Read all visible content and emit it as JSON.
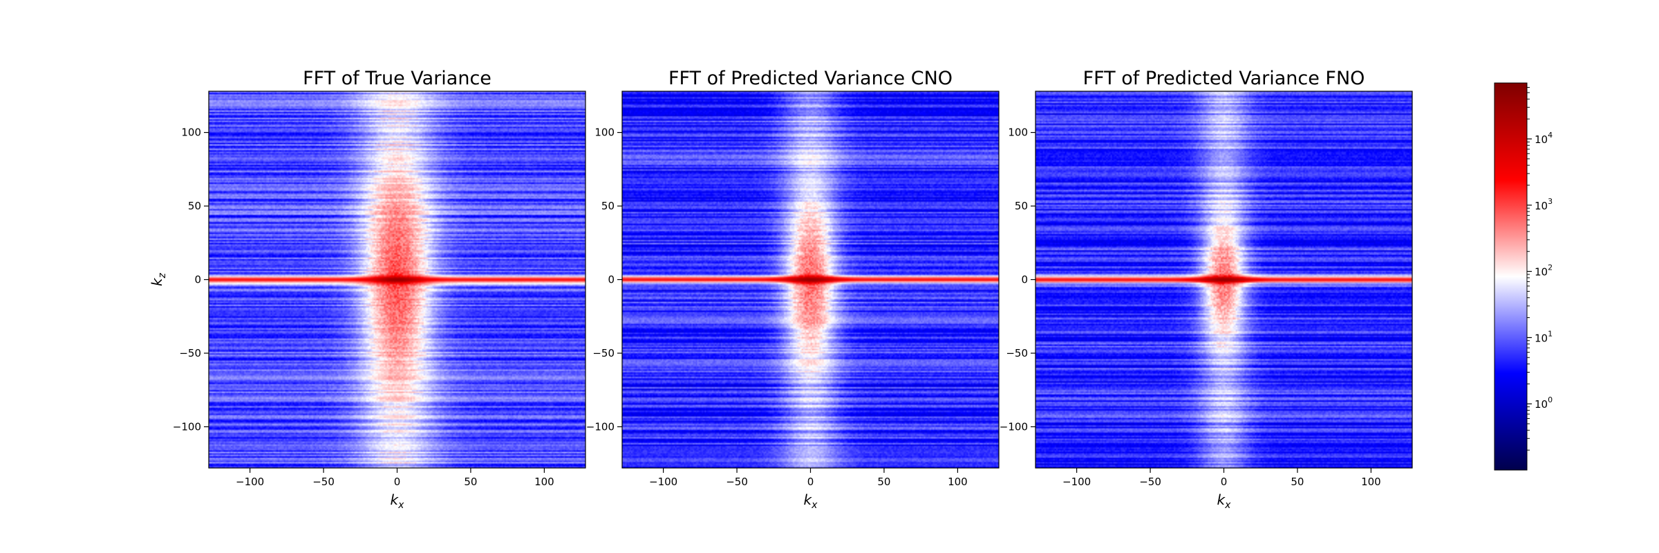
{
  "chart_data": [
    {
      "type": "heatmap",
      "title": "FFT of True Variance",
      "xlabel": "k_x",
      "ylabel": "k_z",
      "xlim": [
        -128,
        128
      ],
      "ylim": [
        -128,
        128
      ],
      "x_ticks": [
        -100,
        -50,
        0,
        50,
        100
      ],
      "y_ticks": [
        -100,
        -50,
        0,
        50,
        100
      ],
      "x_tick_labels": [
        "−100",
        "−50",
        "0",
        "50",
        "100"
      ],
      "y_tick_labels": [
        "−100",
        "−50",
        "0",
        "50",
        "100"
      ],
      "color_scale": "log",
      "features": {
        "background_level": 8,
        "central_lobe_peak": 800,
        "central_lobe_half_width_kx": 22,
        "central_lobe_half_height_kz": 85,
        "kz0_band_peak": 40000
      }
    },
    {
      "type": "heatmap",
      "title": "FFT of Predicted Variance CNO",
      "xlabel": "k_x",
      "ylabel": "",
      "xlim": [
        -128,
        128
      ],
      "ylim": [
        -128,
        128
      ],
      "x_ticks": [
        -100,
        -50,
        0,
        50,
        100
      ],
      "y_ticks": [
        -100,
        -50,
        0,
        50,
        100
      ],
      "x_tick_labels": [
        "−100",
        "−50",
        "0",
        "50",
        "100"
      ],
      "y_tick_labels": [
        "−100",
        "−50",
        "0",
        "50",
        "100"
      ],
      "color_scale": "log",
      "features": {
        "background_level": 5,
        "central_lobe_peak": 600,
        "central_lobe_half_width_kx": 16,
        "central_lobe_half_height_kz": 60,
        "kz0_band_peak": 40000
      }
    },
    {
      "type": "heatmap",
      "title": "FFT of Predicted Variance FNO",
      "xlabel": "k_x",
      "ylabel": "",
      "xlim": [
        -128,
        128
      ],
      "ylim": [
        -128,
        128
      ],
      "x_ticks": [
        -100,
        -50,
        0,
        50,
        100
      ],
      "y_ticks": [
        -100,
        -50,
        0,
        50,
        100
      ],
      "x_tick_labels": [
        "−100",
        "−50",
        "0",
        "50",
        "100"
      ],
      "y_tick_labels": [
        "−100",
        "−50",
        "0",
        "50",
        "100"
      ],
      "color_scale": "log",
      "features": {
        "background_level": 5,
        "central_lobe_peak": 500,
        "central_lobe_half_width_kx": 14,
        "central_lobe_half_height_kz": 45,
        "kz0_band_peak": 40000
      }
    }
  ],
  "colorbar": {
    "scale": "log",
    "colormap": "seismic",
    "range": [
      0.1,
      70000
    ],
    "tick_values": [
      1,
      10,
      100,
      1000,
      10000
    ],
    "tick_labels": [
      {
        "base": "10",
        "exp": "0"
      },
      {
        "base": "10",
        "exp": "1"
      },
      {
        "base": "10",
        "exp": "2"
      },
      {
        "base": "10",
        "exp": "3"
      },
      {
        "base": "10",
        "exp": "4"
      }
    ],
    "colors": [
      "#00004c",
      "#0000ff",
      "#ffffff",
      "#ff0000",
      "#7f0000"
    ]
  }
}
